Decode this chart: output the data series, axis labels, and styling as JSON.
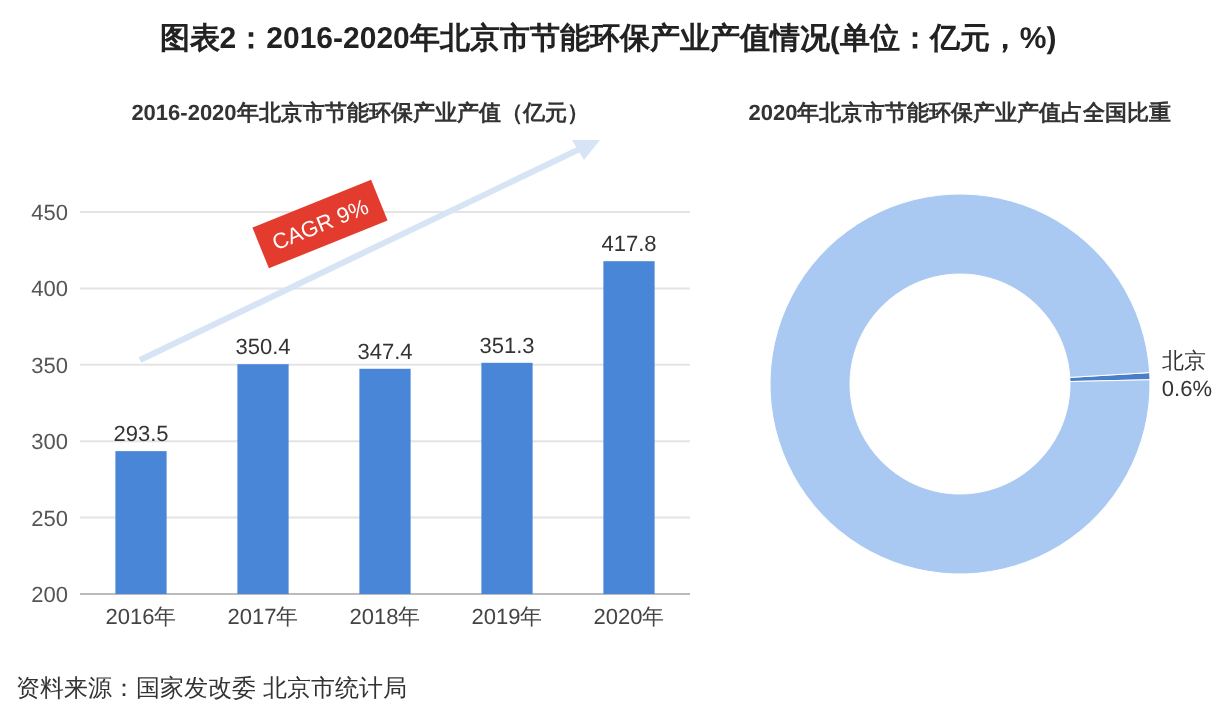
{
  "chart_data": [
    {
      "type": "bar",
      "title": "图表2：2016-2020年北京市节能环保产业产值情况(单位：亿元，%)",
      "subtitle": "2016-2020年北京市节能环保产业产值（亿元）",
      "categories": [
        "2016年",
        "2017年",
        "2018年",
        "2019年",
        "2020年"
      ],
      "values": [
        293.5,
        350.4,
        347.4,
        351.3,
        417.8
      ],
      "color": "#4a86d8",
      "ylim": [
        200,
        450
      ],
      "yticks": [
        200,
        250,
        300,
        350,
        400,
        450
      ],
      "grid": "y",
      "data_labels": true,
      "annotations": [
        "CAGR 9%",
        "资料来源：国家发改委 北京市统计局"
      ]
    },
    {
      "type": "donut",
      "title": "2020年北京市节能环保产业产值占全国比重",
      "categories": [
        "北京",
        null
      ],
      "values": [
        0.6,
        99.4
      ],
      "colors": [
        "#4a7fc8",
        "#a9c9f2"
      ],
      "value_labels": [
        "0.6%",
        null
      ]
    }
  ]
}
